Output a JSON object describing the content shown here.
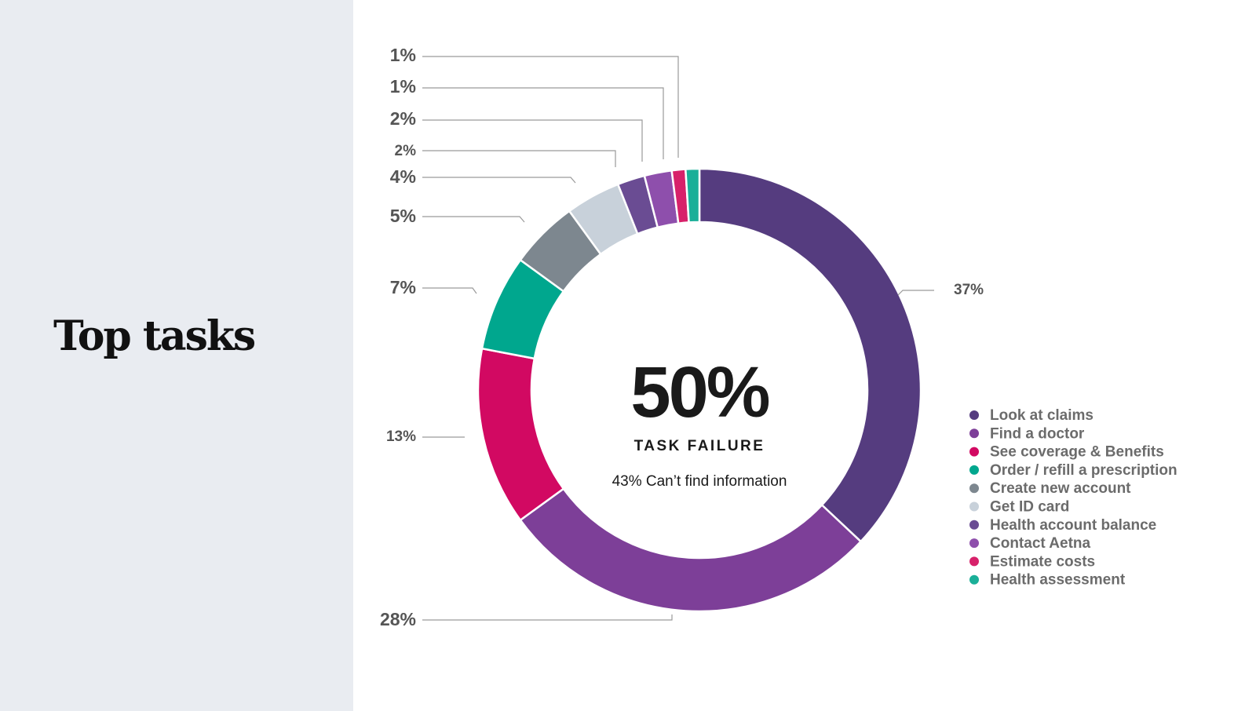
{
  "page": {
    "title": "Top tasks"
  },
  "chart_data": {
    "type": "pie",
    "style": "donut",
    "categories": [
      "Look at claims",
      "Find a doctor",
      "See coverage & Benefits",
      "Order / refill a prescription",
      "Create new account",
      "Get ID card",
      "Health account balance",
      "Contact Aetna",
      "Estimate costs",
      "Health assessment"
    ],
    "values": [
      37,
      28,
      13,
      7,
      5,
      4,
      2,
      2,
      1,
      1
    ],
    "labels": [
      "37%",
      "28%",
      "13%",
      "7%",
      "5%",
      "4%",
      "2%",
      "2%",
      "1%",
      "1%"
    ],
    "colors": [
      "#553c7f",
      "#7d3f98",
      "#d20962",
      "#00a78e",
      "#7d878f",
      "#c8d1da",
      "#6a4c93",
      "#8e4fac",
      "#d7216a",
      "#1aaf98"
    ],
    "center": {
      "value": "50%",
      "label": "TASK FAILURE",
      "note": "43% Can’t find information"
    },
    "legend_position": "right"
  }
}
